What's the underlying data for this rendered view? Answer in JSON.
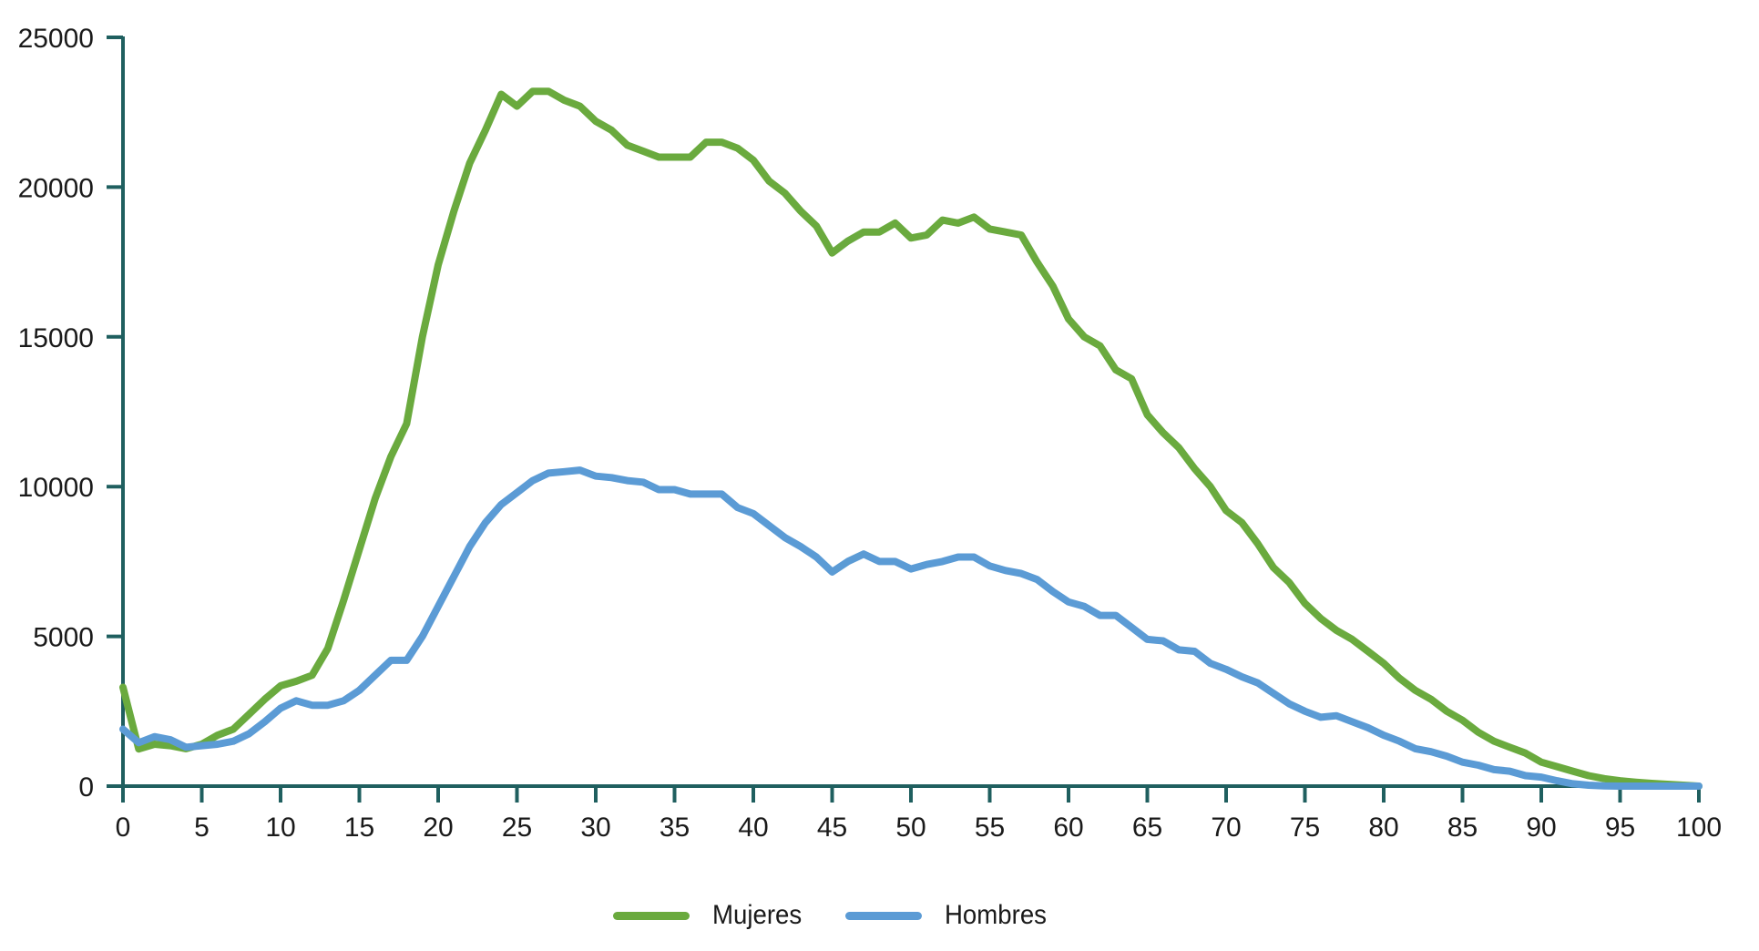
{
  "chart_data": {
    "type": "line",
    "title": "",
    "xlabel": "",
    "ylabel": "",
    "xlim": [
      0,
      100
    ],
    "ylim": [
      0,
      25000
    ],
    "grid": false,
    "legend_position": "bottom",
    "x_ticks": [
      0,
      5,
      10,
      15,
      20,
      25,
      30,
      35,
      40,
      45,
      50,
      55,
      60,
      65,
      70,
      75,
      80,
      85,
      90,
      95,
      100
    ],
    "y_ticks": [
      0,
      5000,
      10000,
      15000,
      20000,
      25000
    ],
    "x": [
      0,
      1,
      2,
      3,
      4,
      5,
      6,
      7,
      8,
      9,
      10,
      11,
      12,
      13,
      14,
      15,
      16,
      17,
      18,
      19,
      20,
      21,
      22,
      23,
      24,
      25,
      26,
      27,
      28,
      29,
      30,
      31,
      32,
      33,
      34,
      35,
      36,
      37,
      38,
      39,
      40,
      41,
      42,
      43,
      44,
      45,
      46,
      47,
      48,
      49,
      50,
      51,
      52,
      53,
      54,
      55,
      56,
      57,
      58,
      59,
      60,
      61,
      62,
      63,
      64,
      65,
      66,
      67,
      68,
      69,
      70,
      71,
      72,
      73,
      74,
      75,
      76,
      77,
      78,
      79,
      80,
      81,
      82,
      83,
      84,
      85,
      86,
      87,
      88,
      89,
      90,
      91,
      92,
      93,
      94,
      95,
      96,
      97,
      98,
      99,
      100
    ],
    "series": [
      {
        "name": "Mujeres",
        "color": "#6aaa3e",
        "values": [
          3300,
          1240,
          1400,
          1350,
          1250,
          1400,
          1700,
          1900,
          2400,
          2900,
          3350,
          3500,
          3700,
          4600,
          6200,
          7900,
          9600,
          11000,
          12100,
          15000,
          17400,
          19200,
          20800,
          21900,
          23100,
          22700,
          23200,
          23200,
          22900,
          22700,
          22200,
          21900,
          21400,
          21200,
          21000,
          21000,
          21000,
          21500,
          21500,
          21300,
          20900,
          20200,
          19800,
          19200,
          18700,
          17800,
          18200,
          18500,
          18500,
          18800,
          18300,
          18400,
          18900,
          18800,
          19000,
          18600,
          18500,
          18400,
          17500,
          16700,
          15600,
          15000,
          14700,
          13900,
          13600,
          12400,
          11800,
          11300,
          10600,
          10000,
          9200,
          8800,
          8100,
          7300,
          6800,
          6100,
          5600,
          5200,
          4900,
          4500,
          4100,
          3600,
          3200,
          2900,
          2500,
          2200,
          1800,
          1500,
          1300,
          1100,
          800,
          650,
          500,
          350,
          250,
          180,
          130,
          90,
          60,
          30,
          0
        ]
      },
      {
        "name": "Hombres",
        "color": "#5b9bd5",
        "values": [
          1900,
          1450,
          1650,
          1550,
          1300,
          1350,
          1400,
          1500,
          1750,
          2150,
          2600,
          2850,
          2700,
          2700,
          2850,
          3200,
          3700,
          4200,
          4200,
          5000,
          6000,
          7000,
          8000,
          8800,
          9400,
          9800,
          10200,
          10450,
          10500,
          10550,
          10350,
          10300,
          10200,
          10150,
          9900,
          9900,
          9750,
          9750,
          9750,
          9300,
          9100,
          8700,
          8300,
          8000,
          7650,
          7150,
          7500,
          7750,
          7500,
          7500,
          7250,
          7400,
          7500,
          7650,
          7650,
          7350,
          7200,
          7100,
          6900,
          6500,
          6150,
          6000,
          5700,
          5700,
          5300,
          4900,
          4850,
          4550,
          4500,
          4100,
          3900,
          3650,
          3450,
          3100,
          2750,
          2500,
          2300,
          2350,
          2150,
          1950,
          1700,
          1500,
          1250,
          1150,
          1000,
          800,
          700,
          550,
          500,
          350,
          300,
          180,
          80,
          30,
          10,
          0,
          0,
          0,
          0,
          0,
          0
        ]
      }
    ]
  },
  "style": {
    "axis_color": "#1f5f5f",
    "text_color": "#1a1a1a",
    "background": "#ffffff"
  },
  "legend": {
    "items": [
      {
        "label": "Mujeres",
        "color": "#6aaa3e"
      },
      {
        "label": "Hombres",
        "color": "#5b9bd5"
      }
    ]
  }
}
